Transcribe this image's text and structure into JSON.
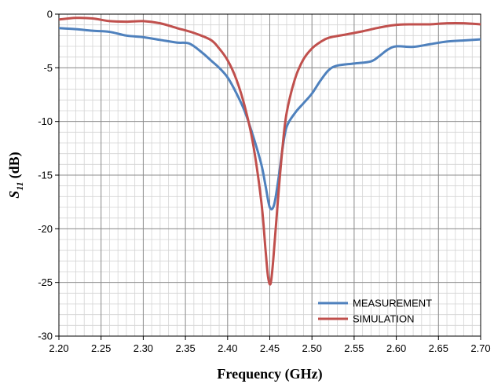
{
  "chart_data": {
    "type": "line",
    "xlabel": "Frequency (GHz)",
    "ylabel": {
      "base": "S",
      "sub": "11",
      "unit": "(dB)"
    },
    "xlim": [
      2.2,
      2.7
    ],
    "ylim": [
      -30,
      0
    ],
    "x_ticks": [
      "2.20",
      "2.25",
      "2.30",
      "2.35",
      "2.40",
      "2.45",
      "2.50",
      "2.55",
      "2.60",
      "2.65",
      "2.70"
    ],
    "y_ticks": [
      "0",
      "-5",
      "-10",
      "-15",
      "-20",
      "-25",
      "-30"
    ],
    "x_minor_step": 0.01,
    "y_minor_step": 1,
    "grid": true,
    "legend_position": "bottom-right",
    "series": [
      {
        "name": "MEASUREMENT",
        "color": "#4f81bd",
        "points": [
          [
            2.2,
            -1.3
          ],
          [
            2.22,
            -1.4
          ],
          [
            2.24,
            -1.55
          ],
          [
            2.26,
            -1.65
          ],
          [
            2.28,
            -2.0
          ],
          [
            2.3,
            -2.15
          ],
          [
            2.32,
            -2.4
          ],
          [
            2.34,
            -2.65
          ],
          [
            2.355,
            -2.75
          ],
          [
            2.37,
            -3.6
          ],
          [
            2.38,
            -4.3
          ],
          [
            2.39,
            -5.0
          ],
          [
            2.4,
            -5.9
          ],
          [
            2.41,
            -7.3
          ],
          [
            2.42,
            -9.0
          ],
          [
            2.43,
            -11.3
          ],
          [
            2.44,
            -14.0
          ],
          [
            2.445,
            -16.0
          ],
          [
            2.45,
            -18.0
          ],
          [
            2.455,
            -17.8
          ],
          [
            2.46,
            -15.5
          ],
          [
            2.465,
            -12.6
          ],
          [
            2.47,
            -10.5
          ],
          [
            2.48,
            -9.2
          ],
          [
            2.49,
            -8.3
          ],
          [
            2.5,
            -7.4
          ],
          [
            2.51,
            -6.2
          ],
          [
            2.52,
            -5.2
          ],
          [
            2.53,
            -4.8
          ],
          [
            2.55,
            -4.6
          ],
          [
            2.57,
            -4.4
          ],
          [
            2.58,
            -3.9
          ],
          [
            2.59,
            -3.3
          ],
          [
            2.6,
            -3.0
          ],
          [
            2.62,
            -3.05
          ],
          [
            2.64,
            -2.8
          ],
          [
            2.66,
            -2.55
          ],
          [
            2.68,
            -2.45
          ],
          [
            2.7,
            -2.35
          ]
        ]
      },
      {
        "name": "SIMULATION",
        "color": "#c0504d",
        "points": [
          [
            2.2,
            -0.5
          ],
          [
            2.22,
            -0.35
          ],
          [
            2.24,
            -0.4
          ],
          [
            2.26,
            -0.65
          ],
          [
            2.28,
            -0.7
          ],
          [
            2.3,
            -0.65
          ],
          [
            2.32,
            -0.85
          ],
          [
            2.34,
            -1.3
          ],
          [
            2.36,
            -1.75
          ],
          [
            2.38,
            -2.4
          ],
          [
            2.39,
            -3.2
          ],
          [
            2.4,
            -4.3
          ],
          [
            2.41,
            -6.0
          ],
          [
            2.42,
            -8.5
          ],
          [
            2.43,
            -12.0
          ],
          [
            2.44,
            -17.5
          ],
          [
            2.445,
            -22.0
          ],
          [
            2.448,
            -24.5
          ],
          [
            2.451,
            -25.1
          ],
          [
            2.454,
            -23.0
          ],
          [
            2.46,
            -17.0
          ],
          [
            2.465,
            -12.5
          ],
          [
            2.47,
            -9.2
          ],
          [
            2.48,
            -6.0
          ],
          [
            2.49,
            -4.2
          ],
          [
            2.5,
            -3.2
          ],
          [
            2.51,
            -2.6
          ],
          [
            2.52,
            -2.2
          ],
          [
            2.54,
            -1.9
          ],
          [
            2.56,
            -1.6
          ],
          [
            2.58,
            -1.25
          ],
          [
            2.6,
            -1.0
          ],
          [
            2.62,
            -0.95
          ],
          [
            2.64,
            -0.95
          ],
          [
            2.66,
            -0.85
          ],
          [
            2.68,
            -0.85
          ],
          [
            2.7,
            -0.95
          ]
        ]
      }
    ]
  }
}
